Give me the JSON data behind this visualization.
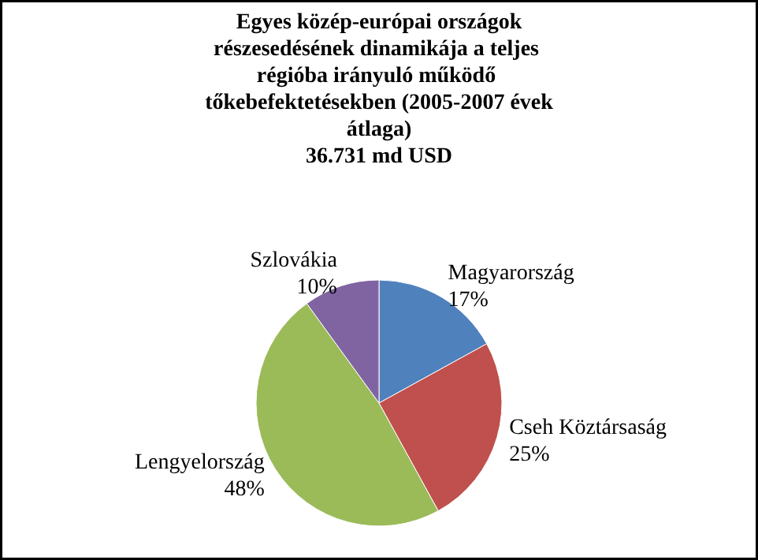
{
  "chart_data": {
    "type": "pie",
    "title": "Egyes közép-európai országok részesedésének dinamikája  a teljes régióba irányuló  működő tőkebefektetésekben (2005-2007 évek átlaga)",
    "subtitle": "36.731 md USD",
    "categories": [
      "Magyarország",
      "Cseh Köztársaság",
      "Lengyelország",
      "Szlovákia"
    ],
    "values": [
      17,
      25,
      48,
      10
    ],
    "colors": [
      "#4f81bd",
      "#c0504d",
      "#9bbb59",
      "#8064a2"
    ],
    "value_labels": [
      "17%",
      "25%",
      "48%",
      "10%"
    ]
  }
}
